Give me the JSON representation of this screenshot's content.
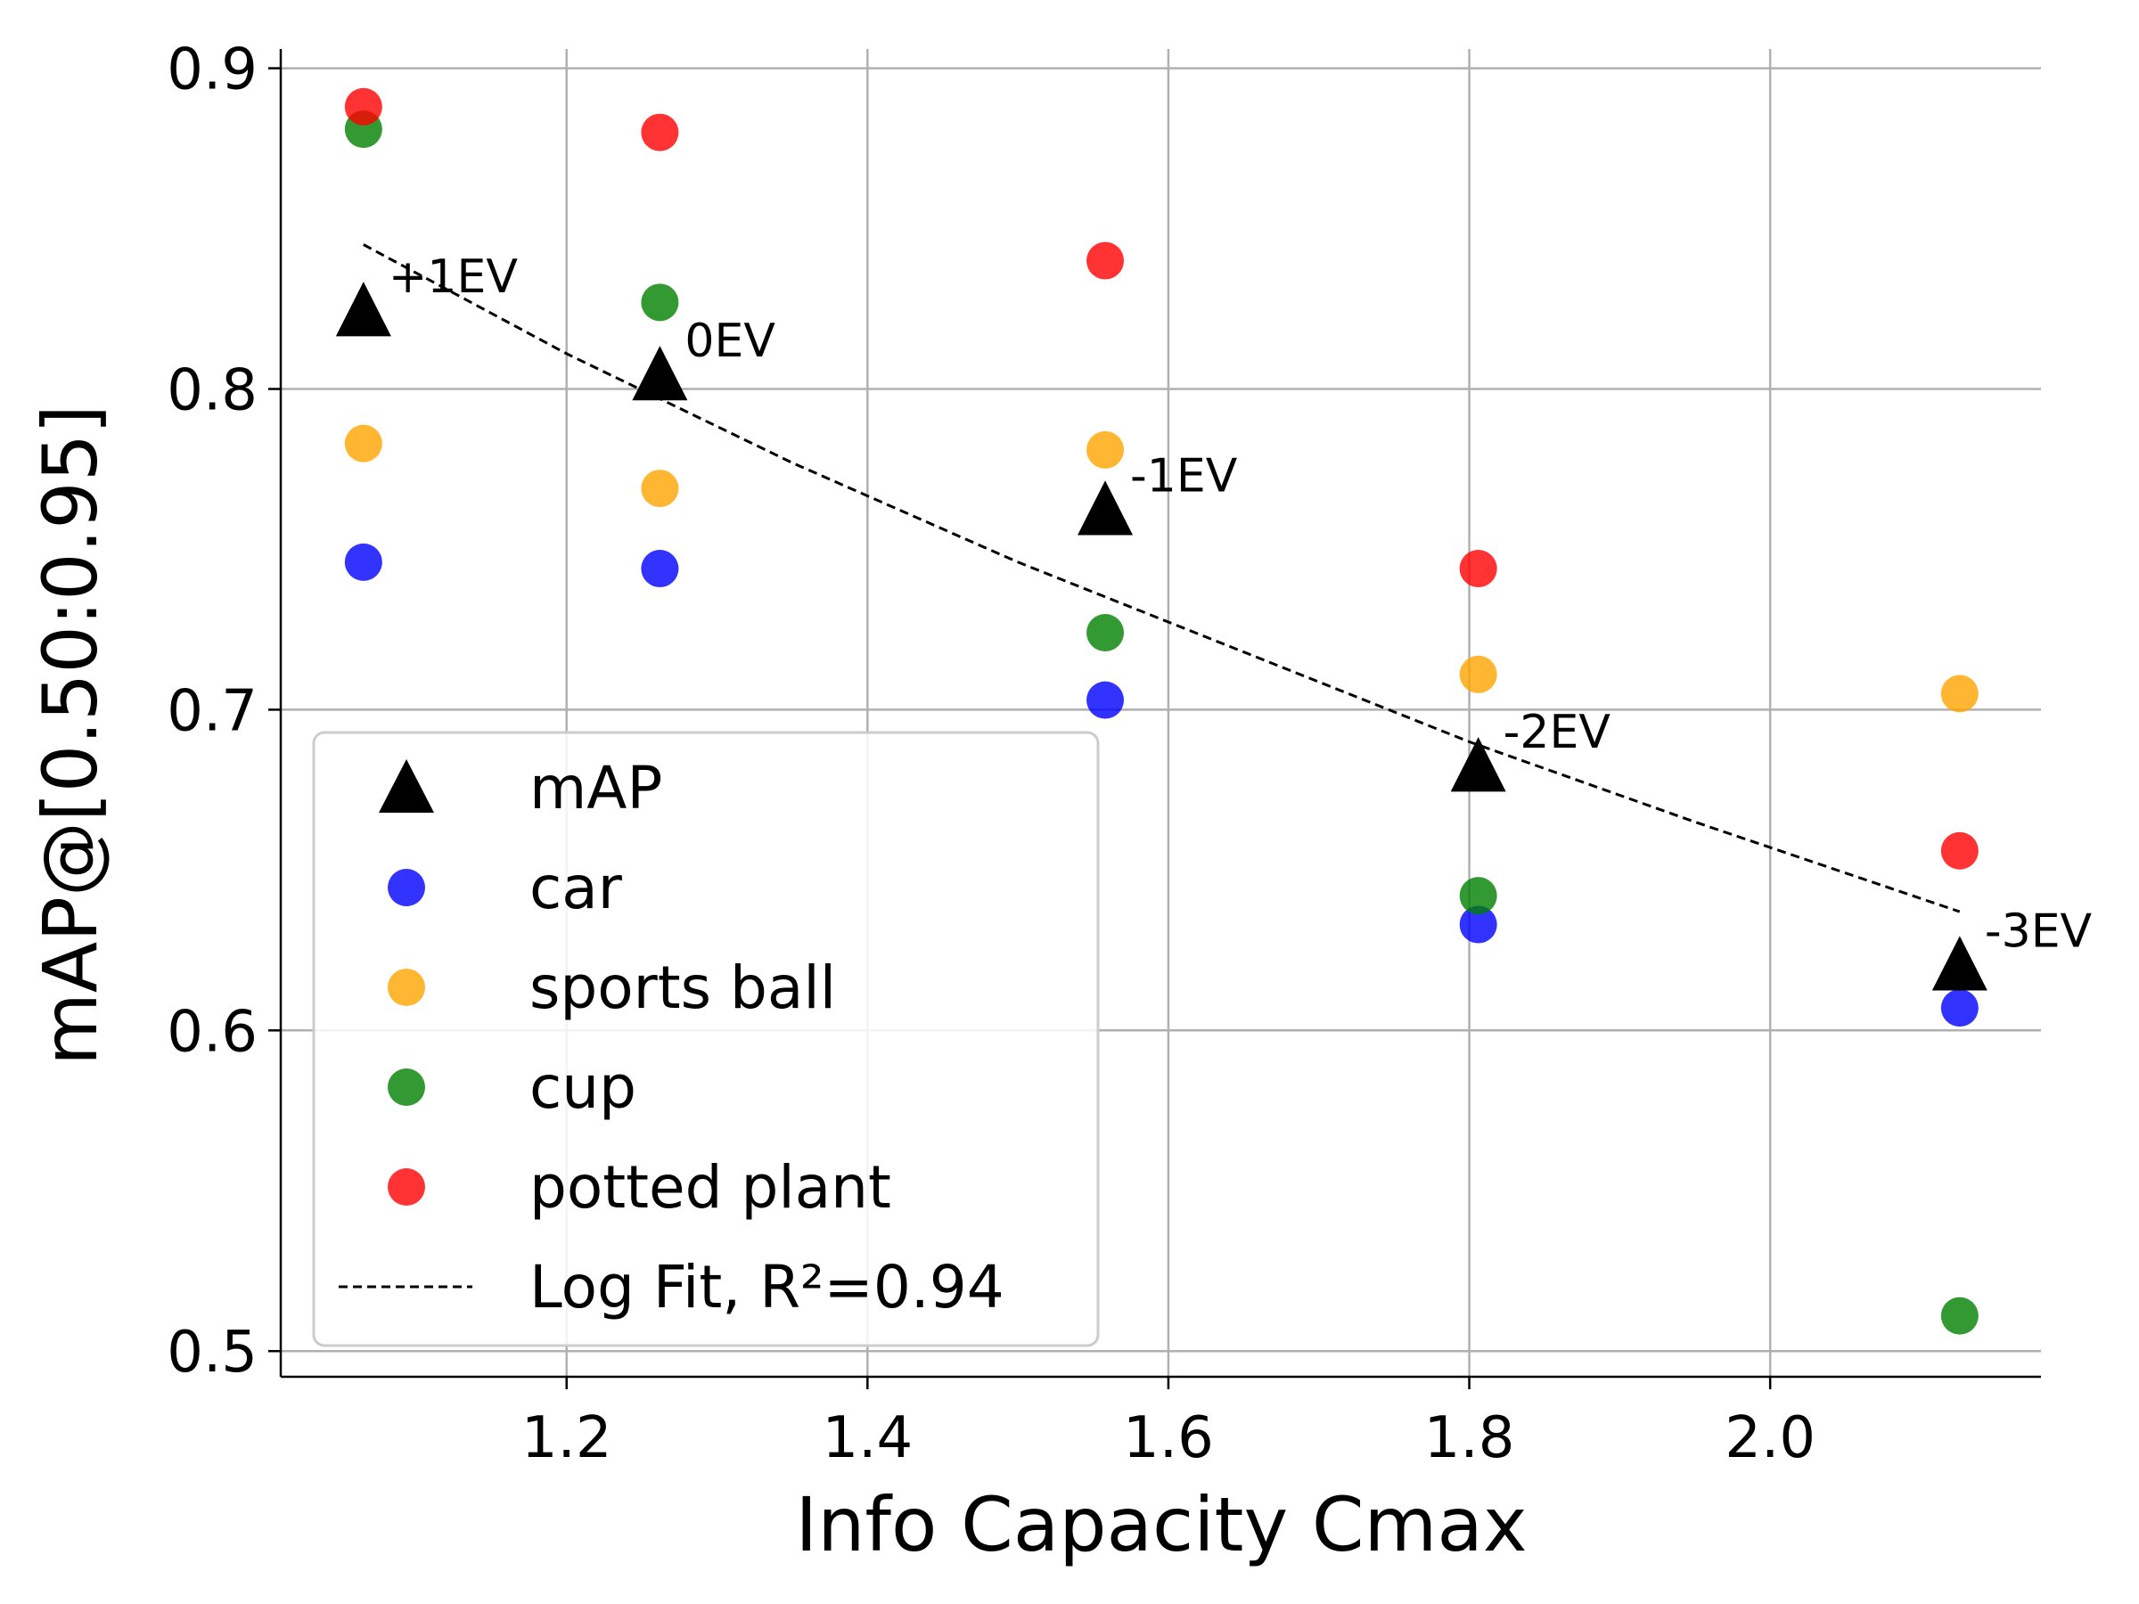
{
  "chart_data": {
    "type": "scatter",
    "xlabel": "Info Capacity Cmax",
    "ylabel": "mAP@[0.50:0.95]",
    "xlim": [
      1.01,
      2.18
    ],
    "ylim": [
      0.492,
      0.906
    ],
    "xticks": [
      1.2,
      1.4,
      1.6,
      1.8,
      2.0
    ],
    "xtick_labels": [
      "1.2",
      "1.4",
      "1.6",
      "1.8",
      "2.0"
    ],
    "yticks": [
      0.5,
      0.6,
      0.7,
      0.8,
      0.9
    ],
    "ytick_labels": [
      "0.5",
      "0.6",
      "0.7",
      "0.8",
      "0.9"
    ],
    "grid": true,
    "legend_position": "lower-left",
    "x": [
      1.065,
      1.262,
      1.558,
      1.806,
      2.126
    ],
    "series": [
      {
        "name": "mAP",
        "marker": "triangle",
        "color": "#000000",
        "values": [
          0.824,
          0.804,
          0.762,
          0.682,
          0.62
        ]
      },
      {
        "name": "car",
        "marker": "circle",
        "color": "#0000ff",
        "values": [
          0.746,
          0.744,
          0.703,
          0.633,
          0.607
        ]
      },
      {
        "name": "sports ball",
        "marker": "circle",
        "color": "#ffa500",
        "values": [
          0.783,
          0.769,
          0.781,
          0.711,
          0.705
        ]
      },
      {
        "name": "cup",
        "marker": "circle",
        "color": "#008000",
        "values": [
          0.881,
          0.827,
          0.724,
          0.642,
          0.511
        ]
      },
      {
        "name": "potted plant",
        "marker": "circle",
        "color": "#ff0000",
        "values": [
          0.888,
          0.88,
          0.84,
          0.744,
          0.656
        ]
      }
    ],
    "fit": {
      "name": "Log Fit, R²=0.94",
      "style": "dashed",
      "color": "#000000",
      "x": [
        1.065,
        1.2,
        1.35,
        1.5,
        1.65,
        1.8,
        1.95,
        2.126
      ],
      "y": [
        0.845,
        0.811,
        0.777,
        0.746,
        0.718,
        0.69,
        0.665,
        0.637
      ]
    },
    "annotations": [
      {
        "text": "+1EV",
        "x": 1.065,
        "y": 0.824
      },
      {
        "text": "0EV",
        "x": 1.262,
        "y": 0.804
      },
      {
        "text": "-1EV",
        "x": 1.558,
        "y": 0.762
      },
      {
        "text": "-2EV",
        "x": 1.806,
        "y": 0.682
      },
      {
        "text": "-3EV",
        "x": 2.126,
        "y": 0.62
      }
    ]
  }
}
